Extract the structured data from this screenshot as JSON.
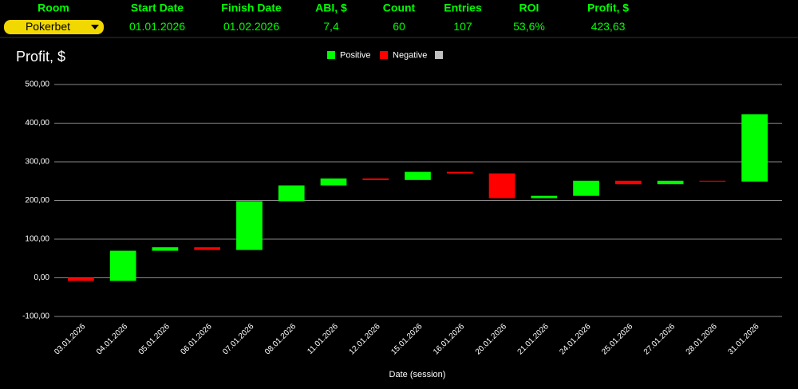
{
  "header": {
    "columns": [
      {
        "label": "Room",
        "value": "Pokerbet"
      },
      {
        "label": "Start Date",
        "value": "01.01.2026"
      },
      {
        "label": "Finish Date",
        "value": "01.02.2026"
      },
      {
        "label": "ABI, $",
        "value": "7,4"
      },
      {
        "label": "Count",
        "value": "60"
      },
      {
        "label": "Entries",
        "value": "107"
      },
      {
        "label": "ROI",
        "value": "53,6%"
      },
      {
        "label": "Profit, $",
        "value": "423,63"
      }
    ]
  },
  "chart_data": {
    "type": "waterfall",
    "title": "Profit, $",
    "x_label": "Date (session)",
    "legend": [
      {
        "name": "Positive",
        "color": "#00ff00"
      },
      {
        "name": "Negative",
        "color": "#ff0000"
      }
    ],
    "categories": [
      "03.01.2026",
      "04.01.2026",
      "05.01.2026",
      "06.01.2026",
      "07.01.2026",
      "08.01.2026",
      "11.01.2026",
      "12.01.2026",
      "15.01.2026",
      "16.01.2026",
      "20.01.2026",
      "21.01.2026",
      "24.01.2026",
      "25.01.2026",
      "27.01.2026",
      "28.01.2026",
      "31.01.2026"
    ],
    "values": [
      -8,
      78,
      9,
      -7,
      126,
      41,
      18,
      -4,
      21,
      -4,
      -64,
      6,
      39,
      -9,
      9,
      -2,
      174
    ],
    "ylim": [
      -100,
      500
    ],
    "yticks": [
      {
        "value": -100,
        "label": "-100,00"
      },
      {
        "value": 0,
        "label": "0,00"
      },
      {
        "value": 100,
        "label": "100,00"
      },
      {
        "value": 200,
        "label": "200,00"
      },
      {
        "value": 300,
        "label": "300,00"
      },
      {
        "value": 400,
        "label": "400,00"
      },
      {
        "value": 500,
        "label": "500,00"
      }
    ],
    "grid": true
  }
}
